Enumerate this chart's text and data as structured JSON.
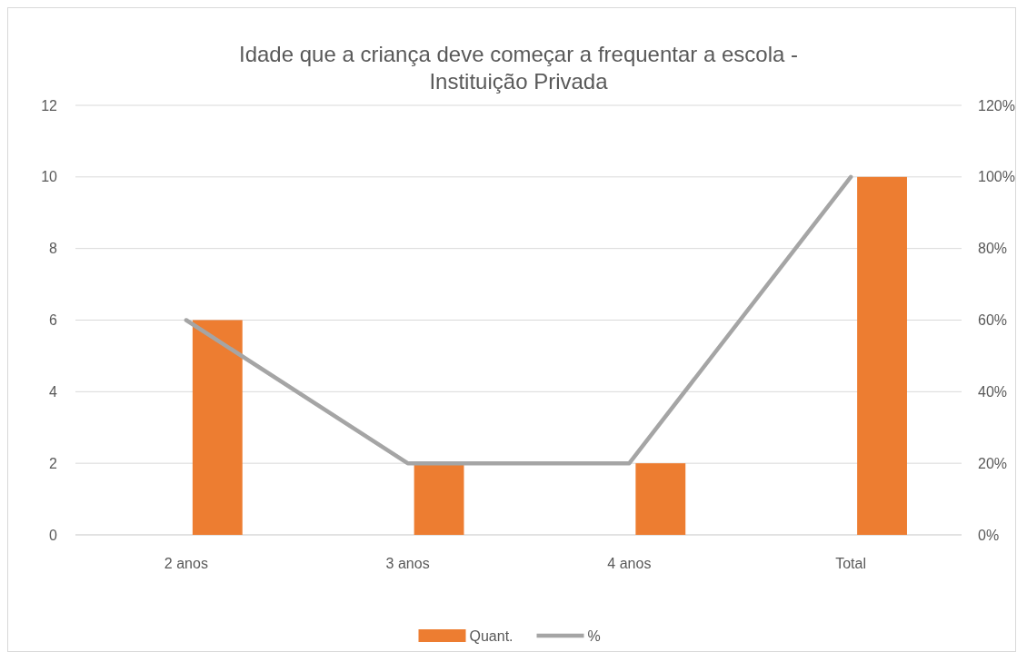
{
  "chart_data": {
    "type": "bar",
    "title": "Idade que a criança deve começar a frequentar a escola - Instituição Privada",
    "categories": [
      "2 anos",
      "3 anos",
      "4 anos",
      "Total"
    ],
    "series": [
      {
        "name": "Quant.",
        "color": "#ed7d31",
        "values": [
          6,
          2,
          2,
          10
        ]
      },
      {
        "name": "%",
        "type": "line",
        "axis": "y2",
        "color": "#a5a5a5",
        "values": [
          60,
          20,
          20,
          100
        ]
      }
    ],
    "ylim": [
      0,
      12
    ],
    "yticks": [
      0,
      2,
      4,
      6,
      8,
      10,
      12
    ],
    "y2lim": [
      0,
      120
    ],
    "y2ticks": [
      {
        "value": 0,
        "label": "0%"
      },
      {
        "value": 20,
        "label": "20%"
      },
      {
        "value": 40,
        "label": "40%"
      },
      {
        "value": 60,
        "label": "60%"
      },
      {
        "value": 80,
        "label": "80%"
      },
      {
        "value": 100,
        "label": "100%"
      },
      {
        "value": 120,
        "label": "120%"
      }
    ],
    "grid": "y",
    "legend": "bottom",
    "marker": "none",
    "line_style": "solid"
  }
}
